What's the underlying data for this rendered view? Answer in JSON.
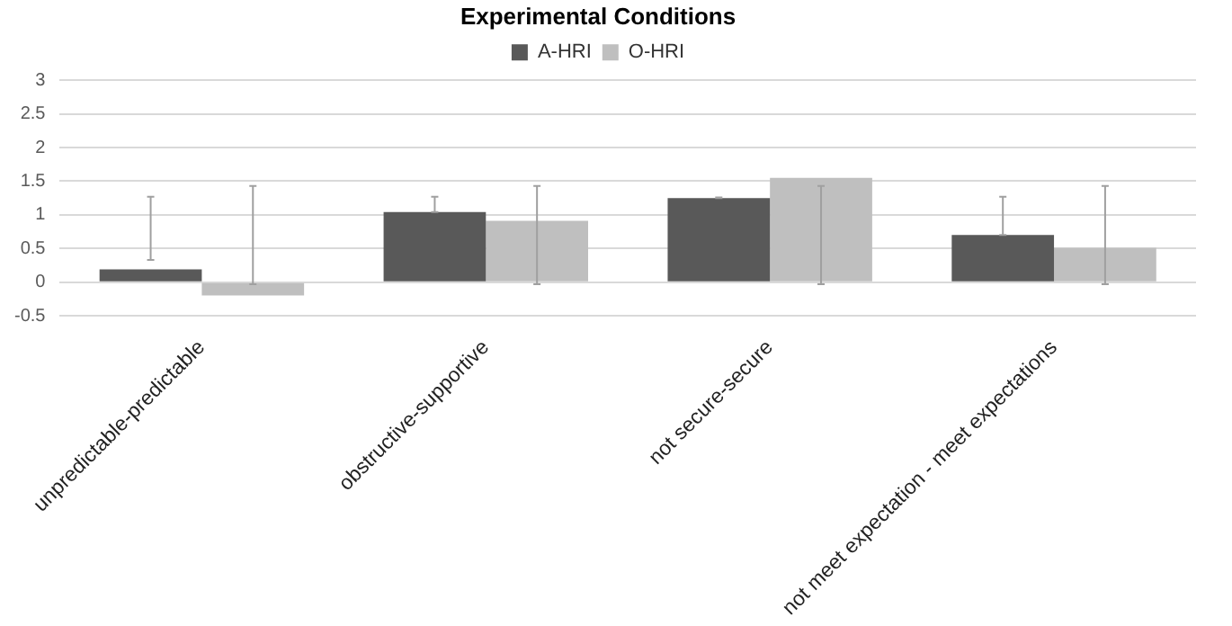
{
  "chart_data": {
    "type": "bar",
    "title": "Experimental Conditions",
    "categories": [
      "unpredictable-predictable",
      "obstructive-supportive",
      "not secure-secure",
      "not meet expectation - meet expectations"
    ],
    "series": [
      {
        "name": "A-HRI",
        "color": "#595959",
        "values": [
          0.19,
          1.04,
          1.25,
          0.7
        ],
        "errors": [
          [
            0.33,
            1.27
          ],
          [
            1.04,
            1.27
          ],
          [
            1.25,
            1.26
          ],
          [
            0.7,
            1.27
          ]
        ]
      },
      {
        "name": "O-HRI",
        "color": "#bfbfbf",
        "values": [
          -0.2,
          0.91,
          1.55,
          0.51
        ],
        "errors": [
          [
            -0.03,
            1.43
          ],
          [
            -0.03,
            1.43
          ],
          [
            -0.03,
            1.43
          ],
          [
            -0.03,
            1.43
          ]
        ]
      }
    ],
    "ylim": [
      -0.5,
      3
    ],
    "yticks": [
      -0.5,
      0,
      0.5,
      1,
      1.5,
      2,
      2.5,
      3
    ],
    "grid": "y",
    "legend": "top"
  }
}
